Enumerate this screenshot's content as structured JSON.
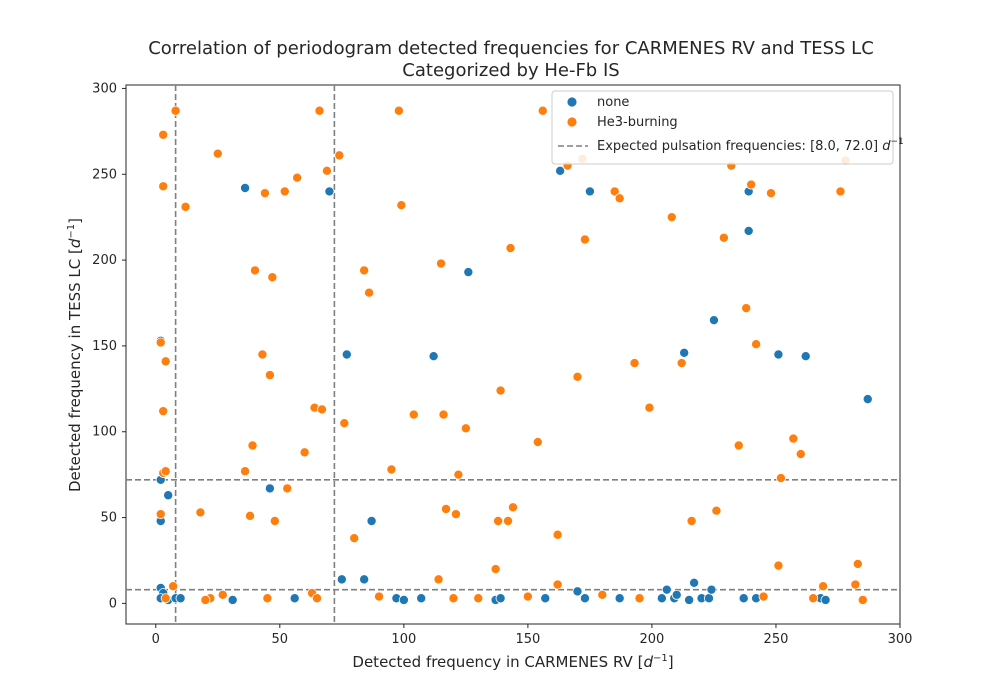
{
  "chart_data": {
    "type": "scatter",
    "title": "Correlation of periodogram detected frequencies for CARMENES RV and TESS LC",
    "subtitle": "Categorized by He-Fb IS",
    "xlabel": "Detected frequency in CARMENES RV [",
    "ylabel": "Detected frequency in TESS LC [",
    "unit_base": "d",
    "unit_exp": "−1",
    "unit_close": "]",
    "xlim": [
      -12,
      300
    ],
    "ylim": [
      -12,
      302
    ],
    "xticks": [
      0,
      50,
      100,
      150,
      200,
      250,
      300
    ],
    "yticks": [
      0,
      50,
      100,
      150,
      200,
      250,
      300
    ],
    "grid": false,
    "legend_position": "top-right",
    "reference_lines": {
      "label": "Expected pulsation frequencies: [8.0, 72.0] ",
      "values": [
        8.0,
        72.0
      ],
      "color": "#7f7f7f"
    },
    "series": [
      {
        "name": "none",
        "color": "#1f77b4",
        "points": [
          [
            2,
            153
          ],
          [
            2,
            72
          ],
          [
            2,
            48
          ],
          [
            5,
            63
          ],
          [
            2,
            9
          ],
          [
            3,
            6
          ],
          [
            2,
            3
          ],
          [
            5,
            2
          ],
          [
            8,
            3
          ],
          [
            10,
            3
          ],
          [
            36,
            242
          ],
          [
            46,
            67
          ],
          [
            56,
            3
          ],
          [
            31,
            2
          ],
          [
            70,
            240
          ],
          [
            75,
            14
          ],
          [
            77,
            145
          ],
          [
            84,
            14
          ],
          [
            87,
            48
          ],
          [
            97,
            3
          ],
          [
            100,
            2
          ],
          [
            107,
            3
          ],
          [
            112,
            144
          ],
          [
            126,
            193
          ],
          [
            137,
            2
          ],
          [
            139,
            3
          ],
          [
            157,
            3
          ],
          [
            163,
            252
          ],
          [
            170,
            7
          ],
          [
            173,
            3
          ],
          [
            175,
            240
          ],
          [
            187,
            3
          ],
          [
            204,
            3
          ],
          [
            206,
            8
          ],
          [
            209,
            3
          ],
          [
            210,
            5
          ],
          [
            213,
            146
          ],
          [
            215,
            2
          ],
          [
            217,
            12
          ],
          [
            220,
            3
          ],
          [
            223,
            3
          ],
          [
            224,
            8
          ],
          [
            225,
            165
          ],
          [
            237,
            3
          ],
          [
            239,
            240
          ],
          [
            239,
            217
          ],
          [
            242,
            3
          ],
          [
            251,
            145
          ],
          [
            262,
            144
          ],
          [
            268,
            3
          ],
          [
            270,
            2
          ],
          [
            287,
            119
          ]
        ]
      },
      {
        "name": "He3-burning",
        "color": "#ff7f0e",
        "points": [
          [
            3,
            273
          ],
          [
            3,
            243
          ],
          [
            2,
            152
          ],
          [
            4,
            141
          ],
          [
            3,
            112
          ],
          [
            3,
            76
          ],
          [
            4,
            77
          ],
          [
            2,
            52
          ],
          [
            4,
            3
          ],
          [
            7,
            10
          ],
          [
            8,
            287
          ],
          [
            12,
            231
          ],
          [
            18,
            53
          ],
          [
            22,
            3
          ],
          [
            25,
            262
          ],
          [
            27,
            5
          ],
          [
            36,
            77
          ],
          [
            38,
            51
          ],
          [
            39,
            92
          ],
          [
            40,
            194
          ],
          [
            43,
            145
          ],
          [
            44,
            239
          ],
          [
            46,
            133
          ],
          [
            47,
            190
          ],
          [
            48,
            48
          ],
          [
            52,
            240
          ],
          [
            53,
            67
          ],
          [
            57,
            248
          ],
          [
            60,
            88
          ],
          [
            63,
            6
          ],
          [
            64,
            114
          ],
          [
            66,
            287
          ],
          [
            67,
            113
          ],
          [
            69,
            252
          ],
          [
            74,
            261
          ],
          [
            76,
            105
          ],
          [
            80,
            38
          ],
          [
            84,
            194
          ],
          [
            86,
            181
          ],
          [
            95,
            78
          ],
          [
            98,
            287
          ],
          [
            99,
            232
          ],
          [
            104,
            110
          ],
          [
            114,
            14
          ],
          [
            115,
            198
          ],
          [
            116,
            110
          ],
          [
            117,
            55
          ],
          [
            121,
            52
          ],
          [
            122,
            75
          ],
          [
            125,
            102
          ],
          [
            137,
            20
          ],
          [
            138,
            48
          ],
          [
            139,
            124
          ],
          [
            142,
            48
          ],
          [
            143,
            207
          ],
          [
            144,
            56
          ],
          [
            154,
            94
          ],
          [
            156,
            287
          ],
          [
            162,
            40
          ],
          [
            162,
            11
          ],
          [
            166,
            255
          ],
          [
            170,
            132
          ],
          [
            172,
            259
          ],
          [
            173,
            212
          ],
          [
            185,
            240
          ],
          [
            187,
            236
          ],
          [
            193,
            140
          ],
          [
            199,
            114
          ],
          [
            208,
            225
          ],
          [
            212,
            140
          ],
          [
            216,
            48
          ],
          [
            226,
            54
          ],
          [
            229,
            213
          ],
          [
            232,
            255
          ],
          [
            235,
            92
          ],
          [
            238,
            172
          ],
          [
            240,
            244
          ],
          [
            242,
            151
          ],
          [
            248,
            239
          ],
          [
            251,
            22
          ],
          [
            252,
            73
          ],
          [
            257,
            96
          ],
          [
            260,
            87
          ],
          [
            269,
            10
          ],
          [
            276,
            240
          ],
          [
            278,
            258
          ],
          [
            282,
            11
          ],
          [
            283,
            23
          ],
          [
            20,
            2
          ],
          [
            45,
            3
          ],
          [
            65,
            3
          ],
          [
            90,
            4
          ],
          [
            120,
            3
          ],
          [
            150,
            4
          ],
          [
            180,
            5
          ],
          [
            195,
            3
          ],
          [
            245,
            4
          ],
          [
            265,
            3
          ],
          [
            285,
            2
          ],
          [
            130,
            3
          ]
        ]
      }
    ]
  }
}
